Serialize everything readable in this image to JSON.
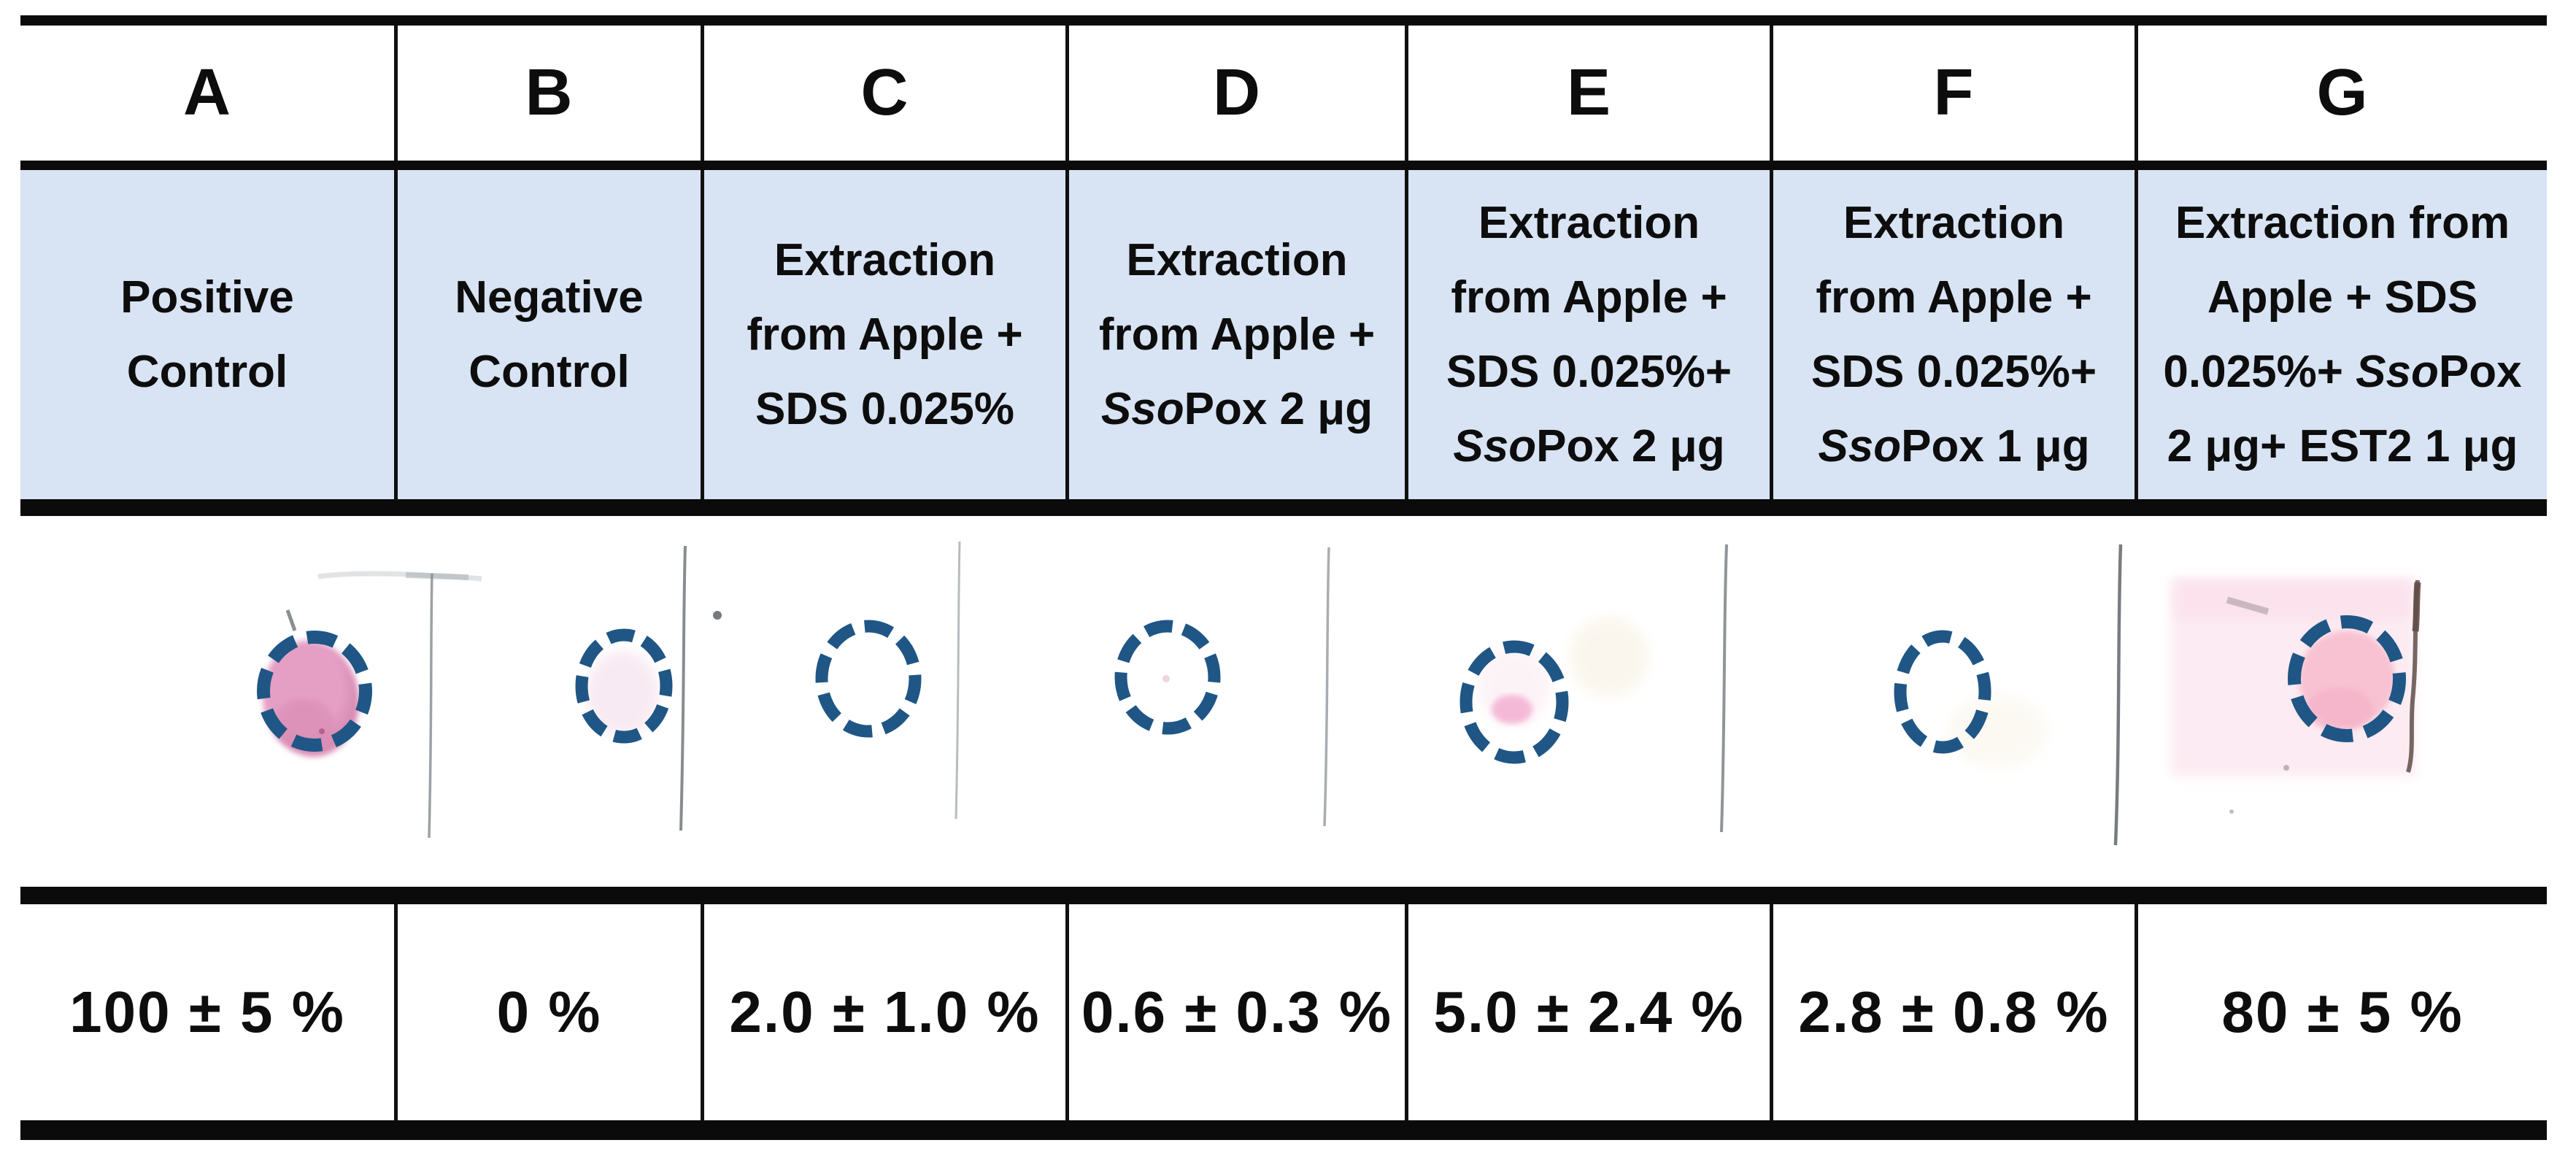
{
  "figure": {
    "kind": "lateral-flow / spot-test results table",
    "columns": [
      {
        "id": "A",
        "label": "A",
        "description": "Positive|Control",
        "result": "100 ± 5 %",
        "spot": "intense pink spot inside dashed circle"
      },
      {
        "id": "B",
        "label": "B",
        "description": "Negative|Control",
        "result": "0 %",
        "spot": "empty dashed circle, very faint pink haze"
      },
      {
        "id": "C",
        "label": "C",
        "description": "Extraction|from Apple +|SDS 0.025%",
        "result": "2.0 ± 1.0 %",
        "spot": "empty dashed circle"
      },
      {
        "id": "D",
        "label": "D",
        "description": "Extraction|from Apple +|*Sso*Pox 2 μg",
        "result": "0.6 ± 0.3 %",
        "spot": "empty dashed circle with tiny fleck"
      },
      {
        "id": "E",
        "label": "E",
        "description": "Extraction|from Apple +|SDS 0.025%+|*Sso*Pox 2 μg",
        "result": "5.0 ± 2.4 %",
        "spot": "faint pink trace inside dashed circle"
      },
      {
        "id": "F",
        "label": "F",
        "description": "Extraction|from Apple +|SDS 0.025%+|*Sso*Pox 1 μg",
        "result": "2.8 ± 0.8 %",
        "spot": "empty dashed circle"
      },
      {
        "id": "G",
        "label": "G",
        "description": "Extraction from|Apple + SDS|0.025%+ *Sso*Pox|2 μg+ EST2 1 μg",
        "result": "80 ± 5 %",
        "spot": "pink spot inside dashed circle on pale pink patch"
      }
    ]
  },
  "colors": {
    "header_fill": "#d8e3f3",
    "rule_black": "#0b0b0b",
    "circle_blue": "#1f5685",
    "strong_pink": "#e59fc5",
    "strong_pink_dark": "#d687b0",
    "medium_pink": "#f8c2d2",
    "pale_pink_patch": "#fcebf2",
    "faint_pink": "#f8e8f1",
    "patch_edge_brown": "#5f4c48",
    "strip_line_gray": "#85898c"
  }
}
